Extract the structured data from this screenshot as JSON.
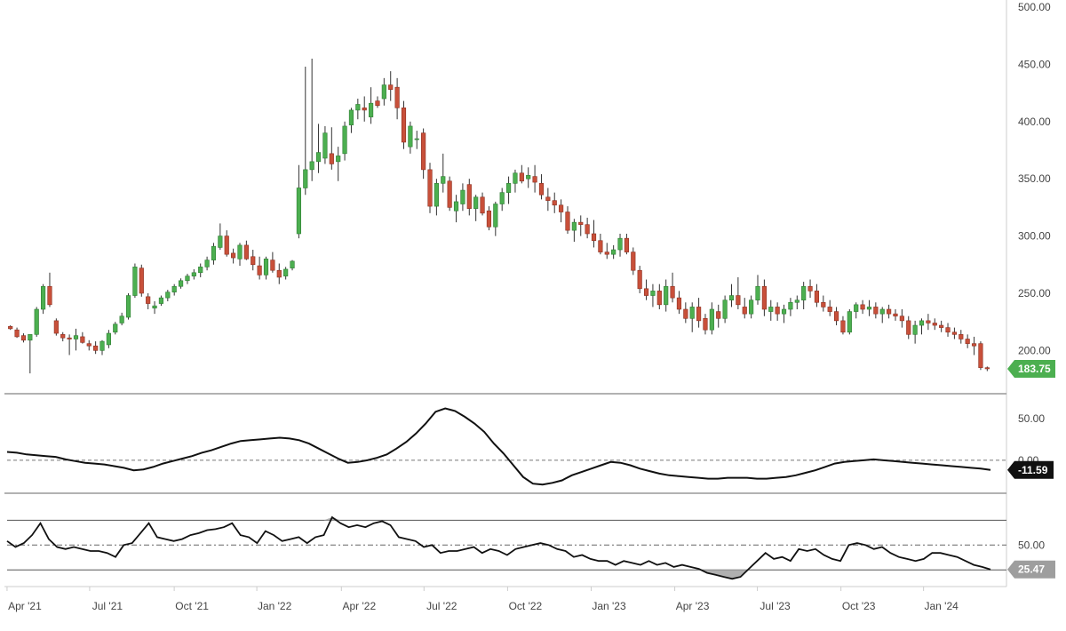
{
  "chart_data": [
    {
      "type": "candlestick",
      "title": "",
      "ylim": [
        170,
        500
      ],
      "y_ticks": [
        "500.00",
        "450.00",
        "400.00",
        "350.00",
        "300.00",
        "250.00",
        "200.00"
      ],
      "last_value_label": "183.75",
      "colors": {
        "up": "#4caf50",
        "down": "#c8503a",
        "up_border": "#2e7d32",
        "down_border": "#8e2f20",
        "badge": "#4caf50"
      },
      "x_labels": [
        "Apr '21",
        "Jul '21",
        "Oct '21",
        "Jan '22",
        "Apr '22",
        "Jul '22",
        "Oct '22",
        "Jan '23",
        "Apr '23",
        "Jul '23",
        "Oct '23",
        "Jan '24"
      ],
      "candles": [
        [
          221,
          222,
          218,
          219
        ],
        [
          218,
          220,
          211,
          212
        ],
        [
          213,
          215,
          207,
          209
        ],
        [
          209,
          212,
          180,
          214
        ],
        [
          214,
          238,
          212,
          236
        ],
        [
          236,
          258,
          232,
          256
        ],
        [
          256,
          268,
          238,
          240
        ],
        [
          226,
          228,
          213,
          215
        ],
        [
          214,
          216,
          208,
          211
        ],
        [
          211,
          214,
          196,
          210
        ],
        [
          210,
          219,
          200,
          213
        ],
        [
          212,
          216,
          206,
          207
        ],
        [
          206,
          209,
          200,
          204
        ],
        [
          204,
          208,
          197,
          200
        ],
        [
          200,
          209,
          196,
          208
        ],
        [
          205,
          218,
          202,
          215
        ],
        [
          216,
          225,
          214,
          223
        ],
        [
          224,
          233,
          222,
          230
        ],
        [
          229,
          250,
          227,
          248
        ],
        [
          248,
          276,
          246,
          273
        ],
        [
          272,
          275,
          247,
          250
        ],
        [
          247,
          250,
          236,
          241
        ],
        [
          237,
          243,
          232,
          239
        ],
        [
          241,
          248,
          239,
          246
        ],
        [
          246,
          253,
          243,
          251
        ],
        [
          251,
          258,
          248,
          256
        ],
        [
          256,
          263,
          254,
          261
        ],
        [
          261,
          267,
          258,
          265
        ],
        [
          265,
          271,
          262,
          268
        ],
        [
          268,
          276,
          264,
          273
        ],
        [
          273,
          282,
          270,
          279
        ],
        [
          279,
          294,
          275,
          291
        ],
        [
          290,
          311,
          288,
          300
        ],
        [
          300,
          305,
          282,
          284
        ],
        [
          285,
          289,
          276,
          281
        ],
        [
          280,
          294,
          274,
          292
        ],
        [
          292,
          296,
          279,
          280
        ],
        [
          282,
          288,
          270,
          275
        ],
        [
          274,
          282,
          262,
          266
        ],
        [
          266,
          282,
          262,
          280
        ],
        [
          279,
          286,
          268,
          270
        ],
        [
          270,
          276,
          258,
          264
        ],
        [
          265,
          273,
          262,
          271
        ],
        [
          272,
          279,
          270,
          278
        ],
        [
          302,
          362,
          298,
          342
        ],
        [
          342,
          448,
          336,
          358
        ],
        [
          358,
          455,
          348,
          365
        ],
        [
          365,
          398,
          355,
          373
        ],
        [
          368,
          396,
          363,
          390
        ],
        [
          372,
          395,
          358,
          363
        ],
        [
          365,
          378,
          348,
          370
        ],
        [
          372,
          400,
          366,
          396
        ],
        [
          397,
          412,
          390,
          410
        ],
        [
          410,
          420,
          402,
          415
        ],
        [
          412,
          422,
          400,
          410
        ],
        [
          404,
          430,
          398,
          416
        ],
        [
          418,
          422,
          412,
          414
        ],
        [
          420,
          438,
          414,
          432
        ],
        [
          432,
          444,
          418,
          428
        ],
        [
          430,
          438,
          402,
          412
        ],
        [
          412,
          418,
          376,
          382
        ],
        [
          378,
          400,
          372,
          396
        ],
        [
          385,
          392,
          376,
          385
        ],
        [
          390,
          394,
          350,
          358
        ],
        [
          358,
          364,
          320,
          326
        ],
        [
          326,
          350,
          318,
          346
        ],
        [
          346,
          372,
          338,
          352
        ],
        [
          348,
          352,
          322,
          325
        ],
        [
          322,
          336,
          312,
          330
        ],
        [
          328,
          346,
          322,
          340
        ],
        [
          345,
          350,
          318,
          324
        ],
        [
          324,
          336,
          313,
          334
        ],
        [
          334,
          338,
          318,
          320
        ],
        [
          322,
          326,
          305,
          308
        ],
        [
          308,
          330,
          300,
          328
        ],
        [
          328,
          342,
          322,
          338
        ],
        [
          338,
          352,
          328,
          346
        ],
        [
          346,
          358,
          338,
          355
        ],
        [
          355,
          362,
          346,
          348
        ],
        [
          350,
          360,
          342,
          353
        ],
        [
          352,
          362,
          338,
          347
        ],
        [
          346,
          354,
          332,
          336
        ],
        [
          334,
          342,
          322,
          331
        ],
        [
          331,
          338,
          320,
          327
        ],
        [
          327,
          332,
          312,
          321
        ],
        [
          321,
          326,
          302,
          305
        ],
        [
          305,
          315,
          295,
          312
        ],
        [
          312,
          318,
          300,
          310
        ],
        [
          310,
          316,
          298,
          302
        ],
        [
          302,
          314,
          290,
          296
        ],
        [
          296,
          302,
          284,
          286
        ],
        [
          286,
          294,
          280,
          284
        ],
        [
          284,
          292,
          280,
          288
        ],
        [
          288,
          302,
          282,
          298
        ],
        [
          298,
          302,
          284,
          286
        ],
        [
          286,
          290,
          266,
          270
        ],
        [
          270,
          274,
          250,
          254
        ],
        [
          254,
          262,
          244,
          248
        ],
        [
          248,
          258,
          238,
          252
        ],
        [
          252,
          258,
          236,
          240
        ],
        [
          240,
          262,
          234,
          256
        ],
        [
          256,
          268,
          242,
          246
        ],
        [
          246,
          252,
          232,
          236
        ],
        [
          236,
          242,
          224,
          228
        ],
        [
          228,
          242,
          216,
          238
        ],
        [
          238,
          246,
          220,
          226
        ],
        [
          228,
          232,
          214,
          218
        ],
        [
          218,
          242,
          214,
          236
        ],
        [
          234,
          240,
          220,
          228
        ],
        [
          228,
          248,
          224,
          244
        ],
        [
          244,
          258,
          238,
          248
        ],
        [
          248,
          264,
          236,
          240
        ],
        [
          238,
          246,
          228,
          232
        ],
        [
          232,
          248,
          228,
          244
        ],
        [
          244,
          266,
          240,
          256
        ],
        [
          256,
          262,
          230,
          236
        ],
        [
          234,
          244,
          226,
          238
        ],
        [
          238,
          242,
          226,
          232
        ],
        [
          232,
          240,
          224,
          236
        ],
        [
          236,
          246,
          230,
          242
        ],
        [
          242,
          248,
          236,
          244
        ],
        [
          244,
          260,
          236,
          256
        ],
        [
          256,
          262,
          246,
          252
        ],
        [
          252,
          258,
          238,
          242
        ],
        [
          242,
          248,
          234,
          238
        ],
        [
          238,
          244,
          230,
          234
        ],
        [
          234,
          238,
          222,
          226
        ],
        [
          226,
          230,
          214,
          216
        ],
        [
          216,
          236,
          214,
          234
        ],
        [
          234,
          242,
          228,
          240
        ],
        [
          240,
          244,
          232,
          236
        ],
        [
          236,
          244,
          230,
          238
        ],
        [
          238,
          242,
          228,
          232
        ],
        [
          232,
          238,
          224,
          236
        ],
        [
          236,
          240,
          228,
          232
        ],
        [
          232,
          236,
          226,
          230
        ],
        [
          230,
          236,
          220,
          226
        ],
        [
          226,
          230,
          210,
          214
        ],
        [
          214,
          226,
          206,
          222
        ],
        [
          222,
          228,
          214,
          226
        ],
        [
          226,
          232,
          218,
          224
        ],
        [
          224,
          228,
          218,
          222
        ],
        [
          222,
          226,
          216,
          220
        ],
        [
          220,
          224,
          212,
          216
        ],
        [
          216,
          220,
          210,
          214
        ],
        [
          214,
          218,
          206,
          210
        ],
        [
          210,
          214,
          202,
          206
        ],
        [
          206,
          212,
          196,
          204
        ],
        [
          206,
          208,
          183,
          185
        ],
        [
          185,
          186,
          182,
          184
        ]
      ]
    },
    {
      "type": "line",
      "ylim": [
        -32,
        70
      ],
      "y_ticks": [
        "50.00",
        "0.00"
      ],
      "reference_line": 0,
      "last_value_label": "-11.59",
      "values": [
        10,
        9,
        7,
        6,
        5,
        4,
        1,
        -1,
        -3,
        -4,
        -5,
        -7,
        -9,
        -12,
        -11,
        -8,
        -4,
        -1,
        2,
        5,
        9,
        12,
        16,
        20,
        23,
        24,
        25,
        26,
        27,
        26,
        24,
        20,
        14,
        8,
        2,
        -3,
        -2,
        0,
        3,
        7,
        14,
        22,
        32,
        44,
        58,
        62,
        59,
        52,
        44,
        34,
        20,
        8,
        -6,
        -20,
        -28,
        -29,
        -27,
        -24,
        -18,
        -14,
        -10,
        -6,
        -2,
        -3,
        -6,
        -10,
        -13,
        -16,
        -18,
        -19,
        -20,
        -21,
        -22,
        -22,
        -21,
        -21,
        -21,
        -22,
        -22,
        -21,
        -20,
        -18,
        -15,
        -12,
        -8,
        -4,
        -2,
        -1,
        0,
        1,
        0,
        -1,
        -2,
        -3,
        -4,
        -5,
        -6,
        -7,
        -8,
        -9,
        -10,
        -11.59
      ],
      "colors": {
        "line": "#111111",
        "badge": "#111111"
      }
    },
    {
      "type": "line",
      "ylim": [
        10,
        95
      ],
      "y_ticks": [
        "50.00"
      ],
      "reference_lines": [
        75,
        50,
        25
      ],
      "last_value_label": "25.47",
      "values": [
        54,
        48,
        52,
        60,
        72,
        56,
        48,
        46,
        48,
        46,
        44,
        44,
        42,
        38,
        50,
        52,
        62,
        72,
        58,
        56,
        54,
        56,
        60,
        62,
        65,
        66,
        68,
        72,
        60,
        58,
        52,
        64,
        60,
        54,
        56,
        58,
        52,
        58,
        60,
        78,
        72,
        68,
        70,
        68,
        72,
        74,
        70,
        58,
        56,
        54,
        48,
        50,
        42,
        44,
        44,
        46,
        48,
        42,
        46,
        44,
        40,
        46,
        48,
        50,
        52,
        50,
        46,
        44,
        38,
        40,
        36,
        34,
        34,
        30,
        34,
        32,
        30,
        34,
        30,
        32,
        28,
        30,
        28,
        26,
        22,
        20,
        18,
        16,
        18,
        26,
        34,
        42,
        36,
        38,
        34,
        46,
        44,
        46,
        40,
        36,
        34,
        50,
        52,
        50,
        46,
        48,
        42,
        38,
        36,
        34,
        36,
        42,
        42,
        40,
        38,
        34,
        30,
        28,
        25.47
      ],
      "colors": {
        "line": "#111111",
        "badge": "#9e9e9e"
      }
    }
  ],
  "axis_x": [
    "Apr '21",
    "Jul '21",
    "Oct '21",
    "Jan '22",
    "Apr '22",
    "Jul '22",
    "Oct '22",
    "Jan '23",
    "Apr '23",
    "Jul '23",
    "Oct '23",
    "Jan '24"
  ]
}
